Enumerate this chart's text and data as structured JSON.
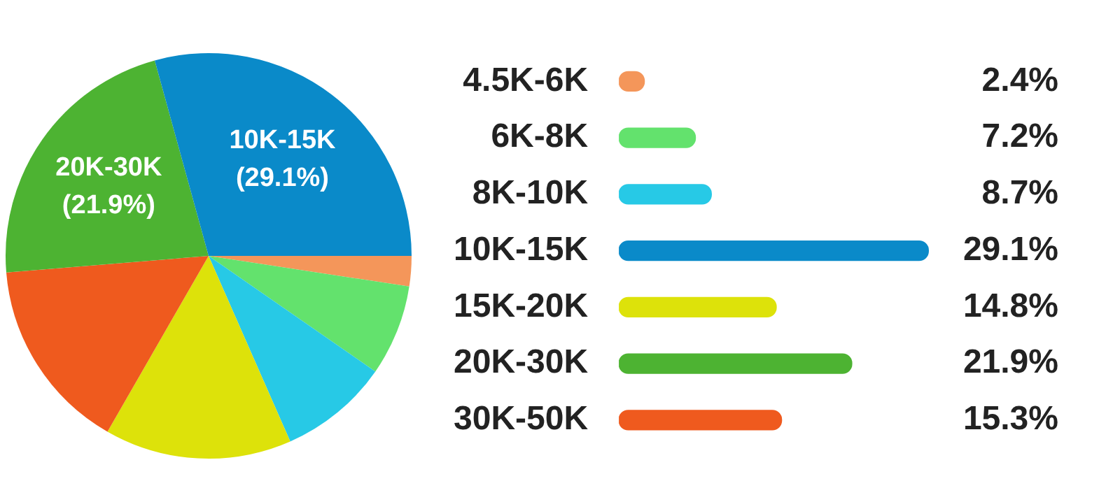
{
  "chart_data": [
    {
      "type": "pie",
      "categories": [
        null,
        null,
        null,
        null,
        null,
        "20K-30K",
        "10K-15K"
      ],
      "values": [
        2.4,
        7.2,
        8.7,
        14.8,
        15.3,
        21.9,
        29.1
      ],
      "colors": [
        "#f4965a",
        "#63e26d",
        "#27c9e6",
        "#dde20a",
        "#ef5a1e",
        "#4db332",
        "#0a8ac9"
      ],
      "value_labels": [
        null,
        null,
        null,
        null,
        null,
        "(21.9%)",
        "(29.1%)"
      ]
    },
    {
      "type": "bar",
      "orientation": "horizontal",
      "categories": [
        "4.5K-6K",
        "6K-8K",
        "8K-10K",
        "10K-15K",
        "15K-20K",
        "20K-30K",
        "30K-50K"
      ],
      "values": [
        2.4,
        7.2,
        8.7,
        29.1,
        14.8,
        21.9,
        15.3
      ],
      "colors": [
        "#f4965a",
        "#63e26d",
        "#27c9e6",
        "#0a8ac9",
        "#dde20a",
        "#4db332",
        "#ef5a1e"
      ],
      "value_labels": [
        "2.4%",
        "7.2%",
        "8.7%",
        "29.1%",
        "14.8%",
        "21.9%",
        "15.3%"
      ],
      "tick_labels": "y"
    }
  ]
}
